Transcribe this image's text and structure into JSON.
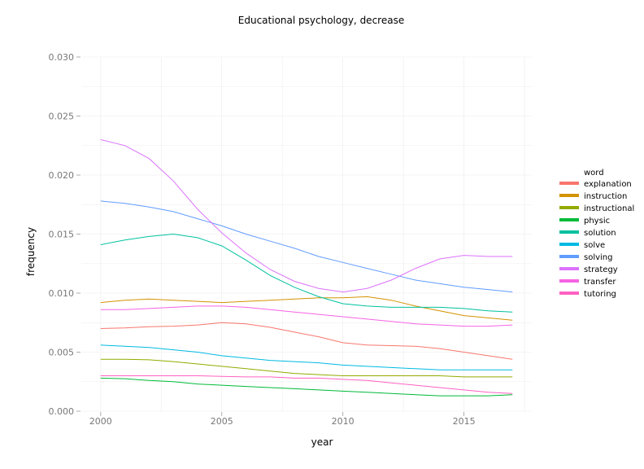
{
  "chart_data": {
    "type": "line",
    "title": "Educational psychology, decrease",
    "xlabel": "year",
    "ylabel": "frequency",
    "xlim": [
      1999.2,
      2017.8
    ],
    "ylim": [
      0,
      0.03
    ],
    "x_ticks": [
      2000,
      2005,
      2010,
      2015
    ],
    "x_tick_labels": [
      "2000",
      "2005",
      "2010",
      "2015"
    ],
    "y_ticks": [
      0,
      0.005,
      0.01,
      0.015,
      0.02,
      0.025,
      0.03
    ],
    "y_tick_labels": [
      "0.000",
      "0.005",
      "0.010",
      "0.015",
      "0.020",
      "0.025",
      "0.030"
    ],
    "grid": true,
    "legend_title": "word",
    "legend_position": "right",
    "x": [
      2000,
      2001,
      2002,
      2003,
      2004,
      2005,
      2006,
      2007,
      2008,
      2009,
      2010,
      2011,
      2012,
      2013,
      2014,
      2015,
      2016,
      2017
    ],
    "series": [
      {
        "name": "explanation",
        "color": "#f8766d",
        "values": [
          0.007,
          0.00705,
          0.00715,
          0.0072,
          0.0073,
          0.0075,
          0.0074,
          0.0071,
          0.0067,
          0.0063,
          0.0058,
          0.0056,
          0.00555,
          0.0055,
          0.0053,
          0.005,
          0.0047,
          0.0044
        ]
      },
      {
        "name": "instruction",
        "color": "#d39200",
        "values": [
          0.0092,
          0.0094,
          0.0095,
          0.0094,
          0.0093,
          0.0092,
          0.0093,
          0.0094,
          0.0095,
          0.0096,
          0.0096,
          0.0097,
          0.0094,
          0.0089,
          0.0085,
          0.0081,
          0.0079,
          0.0077
        ]
      },
      {
        "name": "instructional",
        "color": "#93aa00",
        "values": [
          0.0044,
          0.0044,
          0.00435,
          0.0042,
          0.004,
          0.0038,
          0.0036,
          0.0034,
          0.0032,
          0.0031,
          0.003,
          0.003,
          0.003,
          0.003,
          0.003,
          0.0029,
          0.0029,
          0.0029
        ]
      },
      {
        "name": "physic",
        "color": "#00ba38",
        "values": [
          0.0028,
          0.00275,
          0.0026,
          0.0025,
          0.0023,
          0.0022,
          0.0021,
          0.002,
          0.0019,
          0.0018,
          0.0017,
          0.0016,
          0.0015,
          0.0014,
          0.0013,
          0.0013,
          0.0013,
          0.0014
        ]
      },
      {
        "name": "solution",
        "color": "#00c19f",
        "values": [
          0.0141,
          0.0145,
          0.0148,
          0.015,
          0.0147,
          0.014,
          0.0128,
          0.0115,
          0.0105,
          0.0097,
          0.0091,
          0.0089,
          0.0088,
          0.0088,
          0.0088,
          0.0087,
          0.0085,
          0.0084
        ]
      },
      {
        "name": "solve",
        "color": "#00b9e3",
        "values": [
          0.0056,
          0.0055,
          0.0054,
          0.0052,
          0.005,
          0.0047,
          0.0045,
          0.0043,
          0.0042,
          0.0041,
          0.0039,
          0.0038,
          0.0037,
          0.0036,
          0.0035,
          0.0035,
          0.0035,
          0.0035
        ]
      },
      {
        "name": "solving",
        "color": "#619cff",
        "values": [
          0.0178,
          0.0176,
          0.0173,
          0.0169,
          0.0163,
          0.0157,
          0.015,
          0.0144,
          0.0138,
          0.0131,
          0.0126,
          0.0121,
          0.0116,
          0.0111,
          0.0108,
          0.0105,
          0.0103,
          0.0101
        ]
      },
      {
        "name": "strategy",
        "color": "#db72fb",
        "values": [
          0.023,
          0.0225,
          0.0214,
          0.0195,
          0.0171,
          0.0151,
          0.0134,
          0.012,
          0.011,
          0.0104,
          0.0101,
          0.0104,
          0.0111,
          0.0121,
          0.0129,
          0.0132,
          0.0131,
          0.0131
        ]
      },
      {
        "name": "transfer",
        "color": "#f564e3",
        "values": [
          0.0086,
          0.0086,
          0.0087,
          0.0088,
          0.0089,
          0.0089,
          0.0088,
          0.0086,
          0.0084,
          0.0082,
          0.008,
          0.0078,
          0.0076,
          0.0074,
          0.0073,
          0.0072,
          0.0072,
          0.0073
        ]
      },
      {
        "name": "tutoring",
        "color": "#ff61c3",
        "values": [
          0.003,
          0.003,
          0.003,
          0.003,
          0.003,
          0.00295,
          0.0029,
          0.0029,
          0.0028,
          0.0028,
          0.0027,
          0.0026,
          0.0024,
          0.0022,
          0.002,
          0.0018,
          0.0016,
          0.0015
        ]
      }
    ]
  }
}
